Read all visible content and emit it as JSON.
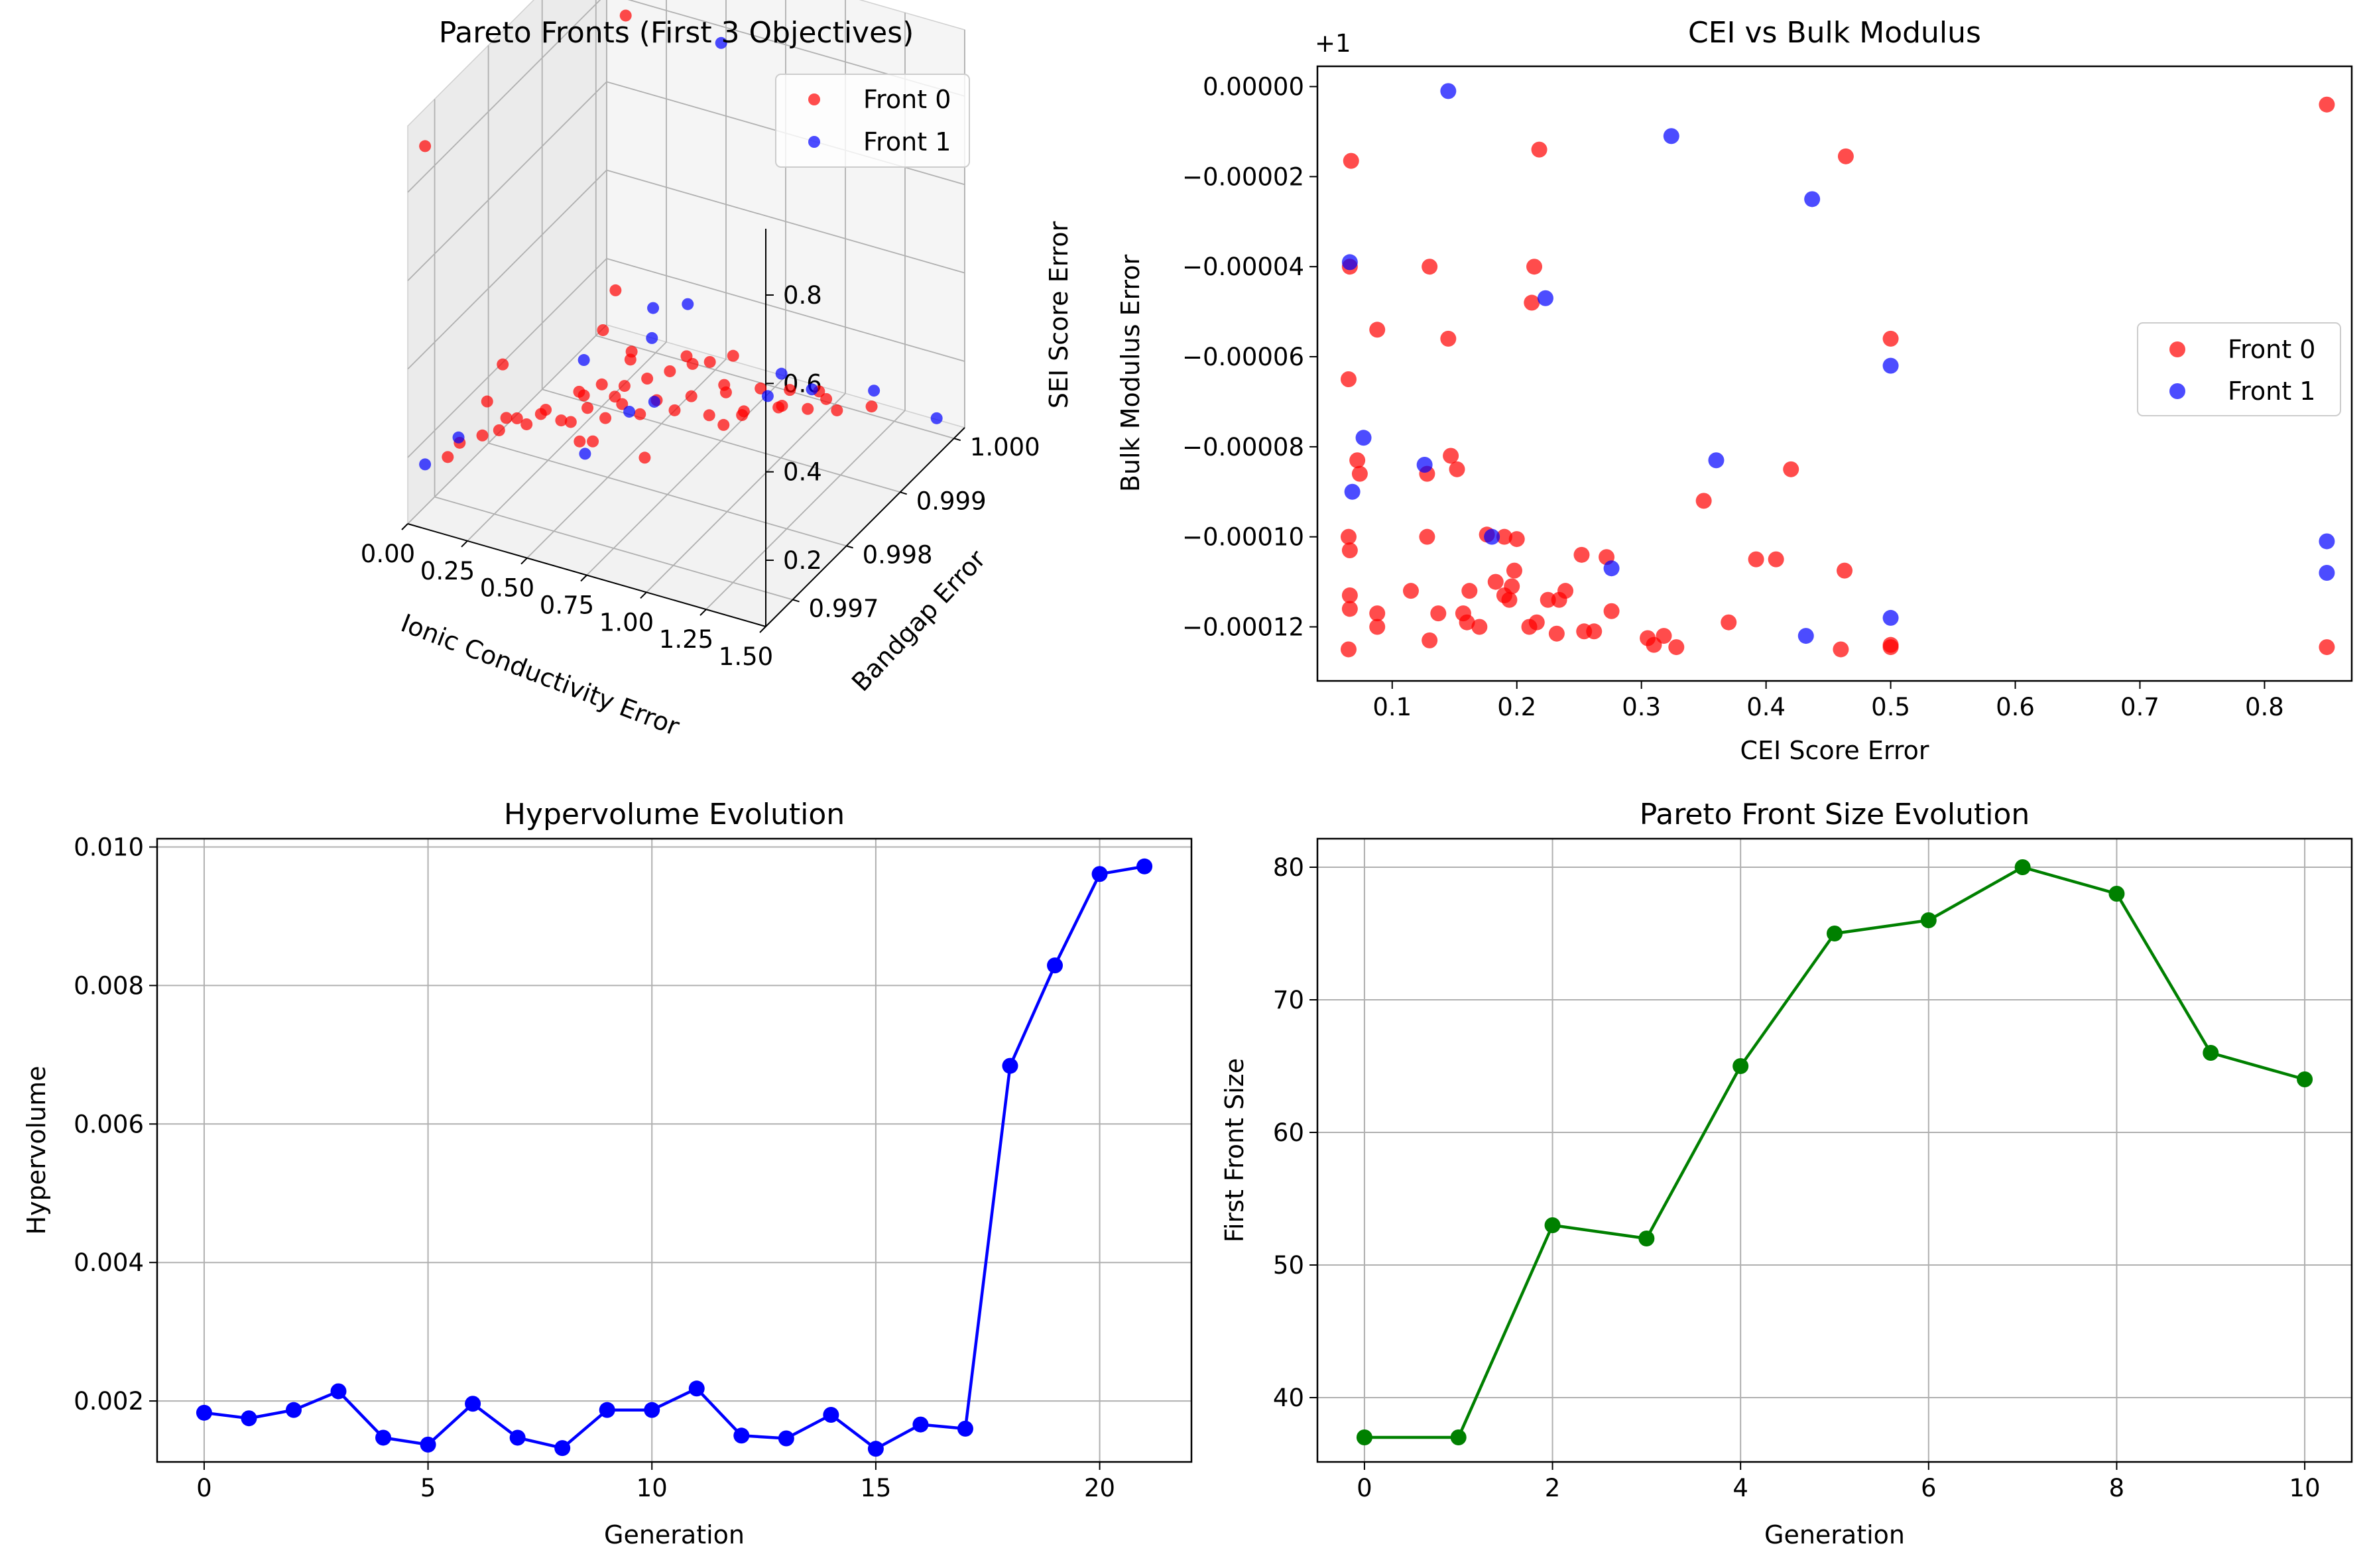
{
  "colors": {
    "front0": "#ff0000",
    "front1": "#0000ff",
    "hypervolume": "#0000ff",
    "front_size": "#008000",
    "grid": "#b0b0b0",
    "pane": "#f2f2f2"
  },
  "chart_data": [
    {
      "type": "scatter",
      "projection": "3d",
      "title": "Pareto Fronts (First 3 Objectives)",
      "xlabel": "Ionic Conductivity Error",
      "ylabel": "Bandgap Error",
      "zlabel": "SEI Score Error",
      "xlim": [
        0,
        1.5
      ],
      "ylim": [
        0.9965,
        1.0002
      ],
      "zlim": [
        0.05,
        0.95
      ],
      "xticks": [
        "0.00",
        "0.25",
        "0.50",
        "0.75",
        "1.00",
        "1.25",
        "1.50"
      ],
      "yticks": [
        "0.997",
        "0.998",
        "0.999",
        "1.000"
      ],
      "zticks": [
        "0.2",
        "0.4",
        "0.6",
        "0.8"
      ],
      "legend_position": "upper right",
      "series": [
        {
          "name": "Front 0",
          "color": "#ff0000",
          "points": [
            [
              0.05,
              0.9966,
              0.9
            ],
            [
              0.35,
              0.999,
              0.95
            ],
            [
              0.42,
              0.9985,
              0.4
            ],
            [
              0.48,
              0.998,
              0.38
            ],
            [
              0.55,
              0.9982,
              0.3
            ],
            [
              0.62,
              0.9976,
              0.3
            ],
            [
              0.55,
              0.9975,
              0.2
            ],
            [
              0.65,
              0.9988,
              0.25
            ],
            [
              0.8,
              0.999,
              0.25
            ],
            [
              0.4,
              0.998,
              0.22
            ],
            [
              0.3,
              0.9972,
              0.25
            ],
            [
              0.2,
              0.997,
              0.22
            ],
            [
              0.15,
              0.9968,
              0.22
            ],
            [
              0.1,
              0.9968,
              0.18
            ],
            [
              0.18,
              0.9974,
              0.18
            ],
            [
              0.25,
              0.9976,
              0.18
            ],
            [
              0.35,
              0.9978,
              0.18
            ],
            [
              0.45,
              0.9977,
              0.16
            ],
            [
              0.22,
              0.998,
              0.15
            ],
            [
              0.12,
              0.9978,
              0.15
            ],
            [
              0.3,
              0.9982,
              0.12
            ],
            [
              0.4,
              0.9984,
              0.12
            ],
            [
              0.5,
              0.9986,
              0.12
            ],
            [
              0.6,
              0.9988,
              0.12
            ],
            [
              0.7,
              0.999,
              0.1
            ],
            [
              0.8,
              0.9992,
              0.1
            ],
            [
              0.9,
              0.9994,
              0.1
            ],
            [
              1.0,
              0.9995,
              0.1
            ],
            [
              1.1,
              0.9996,
              0.1
            ],
            [
              0.28,
              0.9986,
              0.1
            ],
            [
              0.38,
              0.9988,
              0.1
            ],
            [
              0.48,
              0.999,
              0.1
            ],
            [
              0.58,
              0.9992,
              0.1
            ],
            [
              0.68,
              0.9994,
              0.1
            ],
            [
              0.78,
              0.9996,
              0.1
            ],
            [
              0.88,
              0.9997,
              0.1
            ],
            [
              0.98,
              0.9998,
              0.1
            ],
            [
              0.15,
              0.9984,
              0.1
            ],
            [
              0.2,
              0.9988,
              0.1
            ],
            [
              0.25,
              0.999,
              0.1
            ],
            [
              0.3,
              0.9992,
              0.08
            ],
            [
              0.35,
              0.9994,
              0.08
            ],
            [
              0.4,
              0.9996,
              0.08
            ],
            [
              0.45,
              0.9998,
              0.08
            ],
            [
              0.5,
              0.9999,
              0.08
            ],
            [
              1.2,
              0.9998,
              0.1
            ],
            [
              1.1,
              0.9994,
              0.15
            ],
            [
              0.85,
              0.9986,
              0.15
            ],
            [
              1.05,
              0.9988,
              0.2
            ],
            [
              0.95,
              0.9985,
              0.2
            ],
            [
              0.6,
              0.998,
              0.35
            ],
            [
              0.7,
              0.9978,
              0.15
            ],
            [
              0.15,
              0.9976,
              0.3
            ],
            [
              0.22,
              0.997,
              0.3
            ],
            [
              0.65,
              0.9995,
              0.1
            ]
          ]
        },
        {
          "name": "Front 1",
          "color": "#0000ff",
          "points": [
            [
              0.75,
              0.999,
              0.95
            ],
            [
              0.6,
              0.9984,
              0.4
            ],
            [
              0.7,
              0.9986,
              0.4
            ],
            [
              0.55,
              0.9986,
              0.3
            ],
            [
              0.4,
              0.998,
              0.3
            ],
            [
              0.1,
              0.997,
              0.2
            ],
            [
              0.05,
              0.9966,
              0.18
            ],
            [
              0.5,
              0.9984,
              0.15
            ],
            [
              0.9,
              0.9992,
              0.15
            ],
            [
              1.3,
              0.9994,
              0.2
            ],
            [
              0.95,
              0.9998,
              0.1
            ],
            [
              0.8,
              0.9999,
              0.1
            ],
            [
              1.45,
              0.9999,
              0.1
            ],
            [
              0.65,
              0.9982,
              0.22
            ],
            [
              0.45,
              0.9978,
              0.12
            ]
          ]
        }
      ]
    },
    {
      "type": "scatter",
      "title": "CEI vs Bulk Modulus",
      "xlabel": "CEI Score Error",
      "ylabel": "Bulk Modulus Error",
      "offset_text": "+1",
      "xlim": [
        0.04,
        0.87
      ],
      "ylim": [
        -0.000132,
        4.5e-06
      ],
      "xticks": [
        0.1,
        0.2,
        0.3,
        0.4,
        0.5,
        0.6,
        0.7,
        0.8
      ],
      "yticks": [
        0,
        -2e-05,
        -4e-05,
        -6e-05,
        -8e-05,
        -0.0001,
        -0.00012
      ],
      "ytick_labels": [
        "0.00000",
        "−0.00002",
        "−0.00004",
        "−0.00006",
        "−0.00008",
        "−0.00010",
        "−0.00012"
      ],
      "legend_position": "center right",
      "series": [
        {
          "name": "Front 0",
          "color": "#ff0000",
          "points": [
            [
              0.067,
              -1.65e-05
            ],
            [
              0.066,
              -4e-05
            ],
            [
              0.065,
              -6.5e-05
            ],
            [
              0.072,
              -8.3e-05
            ],
            [
              0.074,
              -8.6e-05
            ],
            [
              0.065,
              -0.0001
            ],
            [
              0.066,
              -0.000103
            ],
            [
              0.066,
              -0.000113
            ],
            [
              0.066,
              -0.000116
            ],
            [
              0.065,
              -0.000125
            ],
            [
              0.088,
              -5.4e-05
            ],
            [
              0.088,
              -0.000117
            ],
            [
              0.088,
              -0.00012
            ],
            [
              0.115,
              -0.000112
            ],
            [
              0.128,
              -8.6e-05
            ],
            [
              0.128,
              -0.0001
            ],
            [
              0.13,
              -0.000123
            ],
            [
              0.13,
              -4e-05
            ],
            [
              0.137,
              -0.000117
            ],
            [
              0.145,
              -5.6e-05
            ],
            [
              0.147,
              -8.2e-05
            ],
            [
              0.152,
              -8.5e-05
            ],
            [
              0.157,
              -0.000117
            ],
            [
              0.162,
              -0.000112
            ],
            [
              0.16,
              -0.000119
            ],
            [
              0.17,
              -0.00012
            ],
            [
              0.176,
              -9.95e-05
            ],
            [
              0.183,
              -0.00011
            ],
            [
              0.19,
              -0.0001
            ],
            [
              0.19,
              -0.000113
            ],
            [
              0.194,
              -0.000114
            ],
            [
              0.196,
              -0.000111
            ],
            [
              0.198,
              -0.0001075
            ],
            [
              0.2,
              -0.0001005
            ],
            [
              0.21,
              -0.00012
            ],
            [
              0.212,
              -4.8e-05
            ],
            [
              0.214,
              -4e-05
            ],
            [
              0.218,
              -1.4e-05
            ],
            [
              0.216,
              -0.000119
            ],
            [
              0.225,
              -0.000114
            ],
            [
              0.232,
              -0.0001215
            ],
            [
              0.234,
              -0.000114
            ],
            [
              0.239,
              -0.000112
            ],
            [
              0.252,
              -0.000104
            ],
            [
              0.254,
              -0.000121
            ],
            [
              0.262,
              -0.000121
            ],
            [
              0.272,
              -0.0001045
            ],
            [
              0.276,
              -0.0001165
            ],
            [
              0.305,
              -0.0001225
            ],
            [
              0.31,
              -0.000124
            ],
            [
              0.318,
              -0.000122
            ],
            [
              0.328,
              -0.0001245
            ],
            [
              0.35,
              -9.2e-05
            ],
            [
              0.37,
              -0.000119
            ],
            [
              0.392,
              -0.000105
            ],
            [
              0.408,
              -0.000105
            ],
            [
              0.42,
              -8.5e-05
            ],
            [
              0.46,
              -0.000125
            ],
            [
              0.463,
              -0.0001075
            ],
            [
              0.464,
              -1.55e-05
            ],
            [
              0.5,
              -5.6e-05
            ],
            [
              0.5,
              -0.0001245
            ],
            [
              0.5,
              -0.000124
            ],
            [
              0.85,
              -4e-06
            ],
            [
              0.85,
              -0.0001245
            ]
          ]
        },
        {
          "name": "Front 1",
          "color": "#0000ff",
          "points": [
            [
              0.145,
              -1e-06
            ],
            [
              0.066,
              -3.9e-05
            ],
            [
              0.077,
              -7.8e-05
            ],
            [
              0.068,
              -9e-05
            ],
            [
              0.126,
              -8.4e-05
            ],
            [
              0.18,
              -0.0001
            ],
            [
              0.223,
              -4.7e-05
            ],
            [
              0.276,
              -0.000107
            ],
            [
              0.324,
              -1.1e-05
            ],
            [
              0.36,
              -8.3e-05
            ],
            [
              0.432,
              -0.000122
            ],
            [
              0.437,
              -2.5e-05
            ],
            [
              0.5,
              -6.2e-05
            ],
            [
              0.5,
              -0.000118
            ],
            [
              0.85,
              -0.000101
            ],
            [
              0.85,
              -0.000108
            ]
          ]
        }
      ]
    },
    {
      "type": "line",
      "title": "Hypervolume Evolution",
      "xlabel": "Generation",
      "ylabel": "Hypervolume",
      "xlim": [
        -1.05,
        22.05
      ],
      "ylim": [
        0.00112,
        0.01012
      ],
      "xticks": [
        0,
        5,
        10,
        15,
        20
      ],
      "yticks": [
        0.002,
        0.004,
        0.006,
        0.008,
        0.01
      ],
      "ytick_labels": [
        "0.002",
        "0.004",
        "0.006",
        "0.008",
        "0.010"
      ],
      "grid": true,
      "color": "#0000ff",
      "x": [
        0,
        1,
        2,
        3,
        4,
        5,
        6,
        7,
        8,
        9,
        10,
        11,
        12,
        13,
        14,
        15,
        16,
        17,
        18,
        19,
        20,
        21
      ],
      "y": [
        0.00183,
        0.00175,
        0.00187,
        0.00214,
        0.00147,
        0.00137,
        0.00196,
        0.00147,
        0.00132,
        0.00187,
        0.00187,
        0.00218,
        0.0015,
        0.00146,
        0.0018,
        0.00131,
        0.00166,
        0.0016,
        0.00684,
        0.00829,
        0.00961,
        0.00972
      ]
    },
    {
      "type": "line",
      "title": "Pareto Front Size Evolution",
      "xlabel": "Generation",
      "ylabel": "First Front Size",
      "xlim": [
        -0.5,
        10.5
      ],
      "ylim": [
        35.15,
        82.15
      ],
      "xticks": [
        0,
        2,
        4,
        6,
        8,
        10
      ],
      "yticks": [
        40,
        50,
        60,
        70,
        80
      ],
      "grid": true,
      "color": "#008000",
      "x": [
        0,
        1,
        2,
        3,
        4,
        5,
        6,
        7,
        8,
        9,
        10
      ],
      "y": [
        37,
        37,
        53,
        52,
        65,
        75,
        76,
        80,
        78,
        66,
        64
      ]
    }
  ]
}
